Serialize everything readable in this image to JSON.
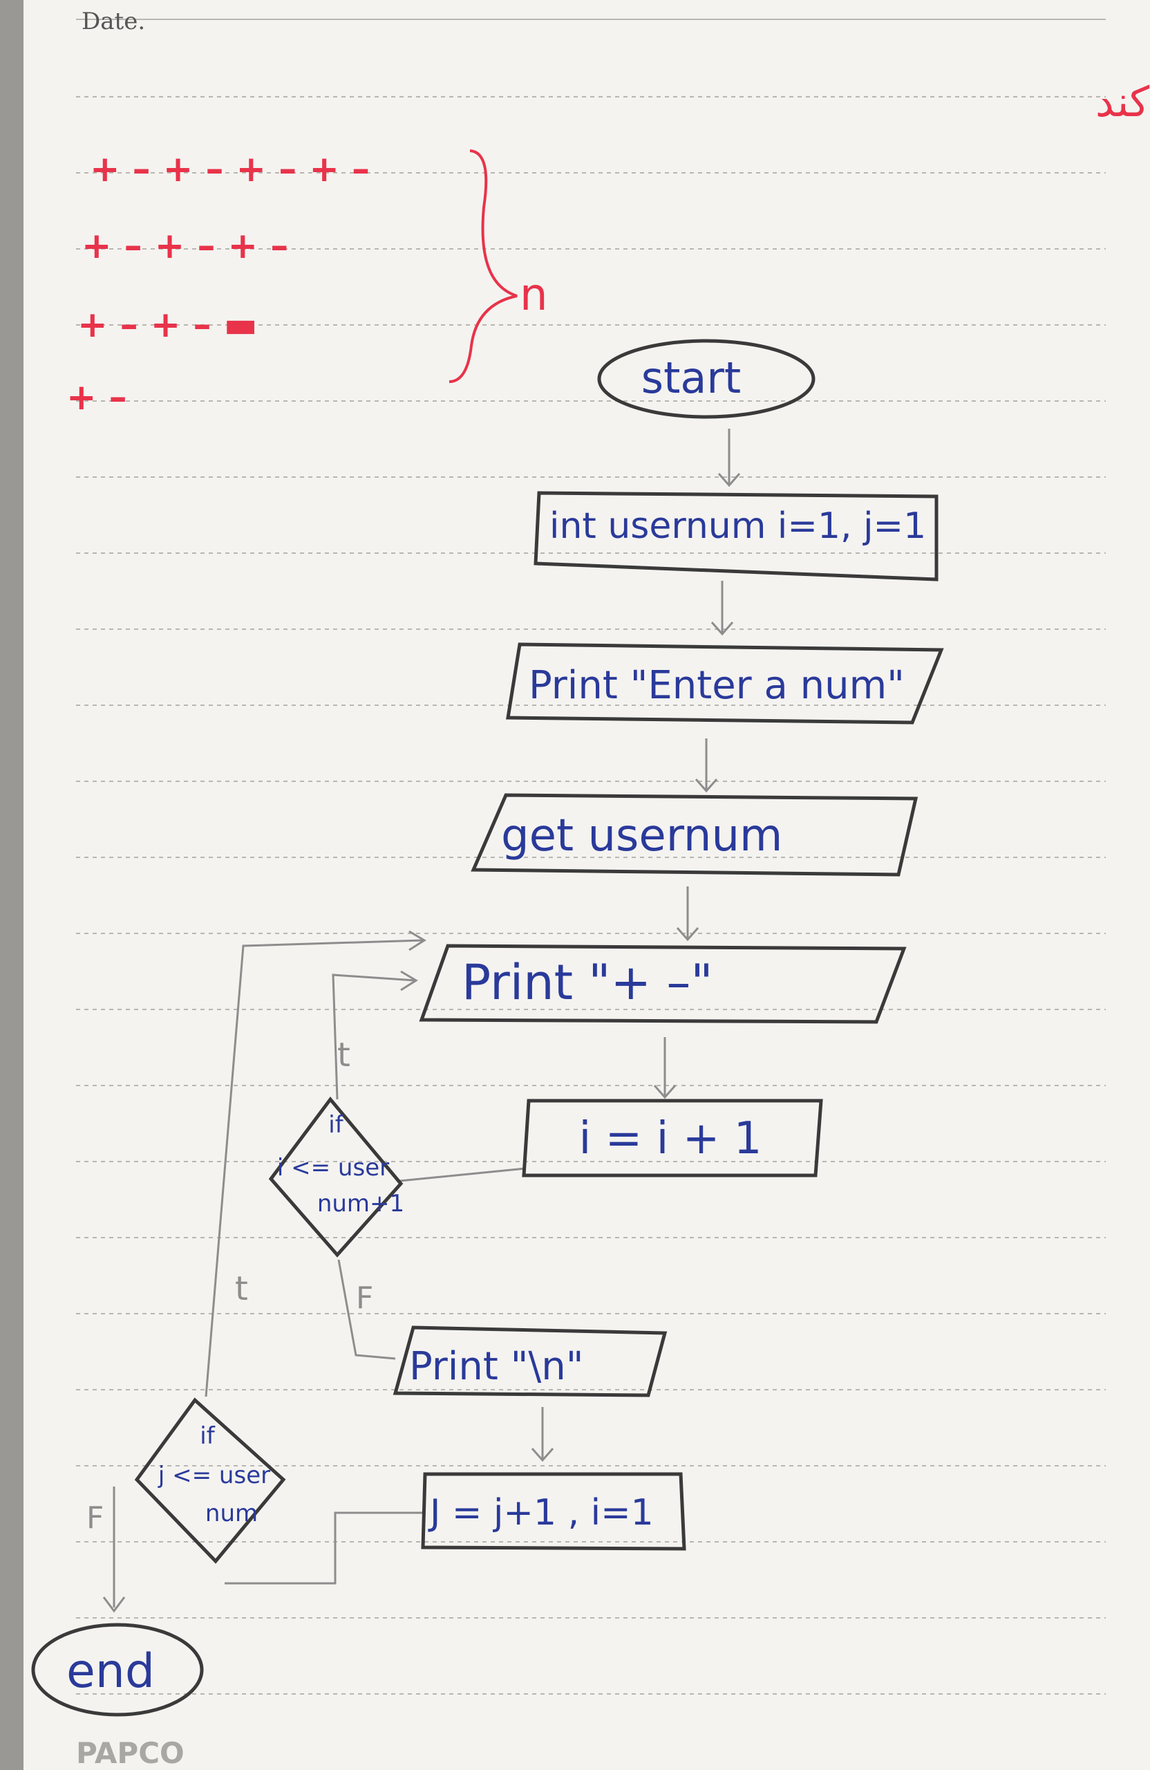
{
  "header": {
    "date_label": "Date."
  },
  "task": {
    "title": "فلوچارتی رارسم کنید که شکل روبرو را چاپ کند",
    "pattern_rows": [
      "+ – + – + – + –",
      "+ – + – + –",
      "+ – + – ▬",
      "+ –"
    ],
    "brace_label": "n"
  },
  "flowchart": {
    "start": "start",
    "declare": "int usernum i=1, j=1",
    "prompt": "Print \"Enter a num\"",
    "input": "get usernum",
    "print_pm": "Print \"+ –\"",
    "inc_i": "i = i + 1",
    "cond_i": [
      "if",
      "i <= user",
      "num+1"
    ],
    "branch_true_1": "t",
    "branch_false_1": "F",
    "print_newline": "Print \"\\n\"",
    "inc_j": "J = j+1 , i=1",
    "cond_j": [
      "if",
      "j <= user",
      "num"
    ],
    "branch_true_2": "t",
    "branch_false_2": "F",
    "end": "end"
  },
  "footer": {
    "brand": "PAPCO"
  },
  "colors": {
    "paper": "#f4f3f0",
    "pen_blue": "#2a3a9a",
    "pen_red": "#e8334a",
    "pencil": "#3a3a3a"
  }
}
